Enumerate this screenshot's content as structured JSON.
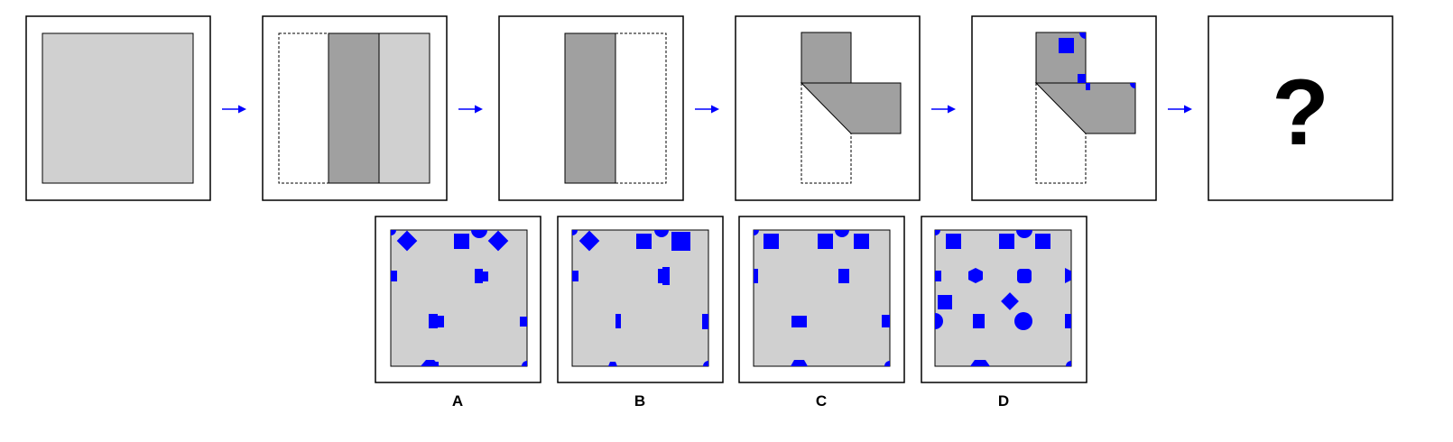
{
  "colors": {
    "sheet": "#d0d0d0",
    "folded": "#a0a0a0",
    "hole": "#0000ff",
    "arrow": "#0000ff",
    "frame": "#000000"
  },
  "sequence": {
    "question_mark": "?"
  },
  "options": [
    {
      "label": "A"
    },
    {
      "label": "B"
    },
    {
      "label": "C"
    },
    {
      "label": "D"
    }
  ]
}
